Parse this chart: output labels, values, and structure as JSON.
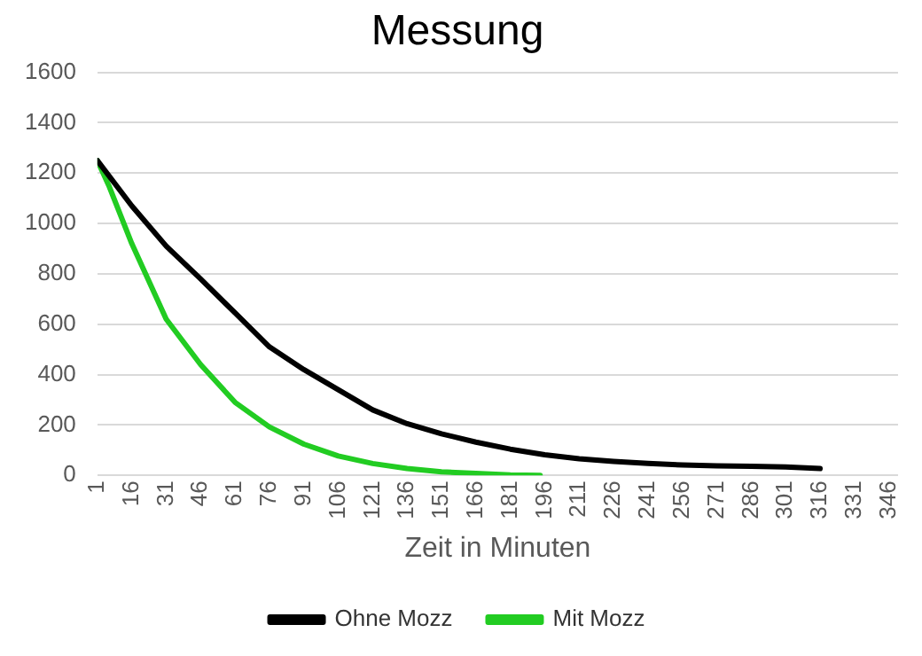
{
  "chart_data": {
    "type": "line",
    "title": "Messung",
    "xlabel": "Zeit in Minuten",
    "xlim": [
      1,
      350
    ],
    "xticks": [
      1,
      16,
      31,
      46,
      61,
      76,
      91,
      106,
      121,
      136,
      151,
      166,
      181,
      196,
      211,
      226,
      241,
      256,
      271,
      286,
      301,
      316,
      331,
      346
    ],
    "ylim": [
      0,
      1600
    ],
    "yticks": [
      0,
      200,
      400,
      600,
      800,
      1000,
      1200,
      1400,
      1600
    ],
    "grid": "y",
    "legend": "bottom",
    "marker": "none",
    "line_style": "solid",
    "series": [
      {
        "name": "Ohne Mozz",
        "color": "#000000",
        "x": [
          1,
          16,
          31,
          46,
          61,
          76,
          91,
          106,
          121,
          136,
          151,
          166,
          181,
          196,
          211,
          226,
          241,
          256,
          271,
          286,
          301,
          316
        ],
        "values": [
          1250,
          1070,
          910,
          780,
          645,
          510,
          420,
          340,
          260,
          205,
          165,
          132,
          104,
          82,
          66,
          55,
          47,
          41,
          38,
          36,
          33,
          27
        ]
      },
      {
        "name": "Mit Mozz",
        "color": "#22cc22",
        "x": [
          1,
          6,
          16,
          31,
          46,
          61,
          76,
          91,
          106,
          121,
          136,
          151,
          166,
          181,
          194
        ],
        "values": [
          1250,
          1150,
          920,
          620,
          440,
          290,
          192,
          124,
          77,
          47,
          27,
          14,
          8,
          2,
          0
        ]
      }
    ]
  }
}
